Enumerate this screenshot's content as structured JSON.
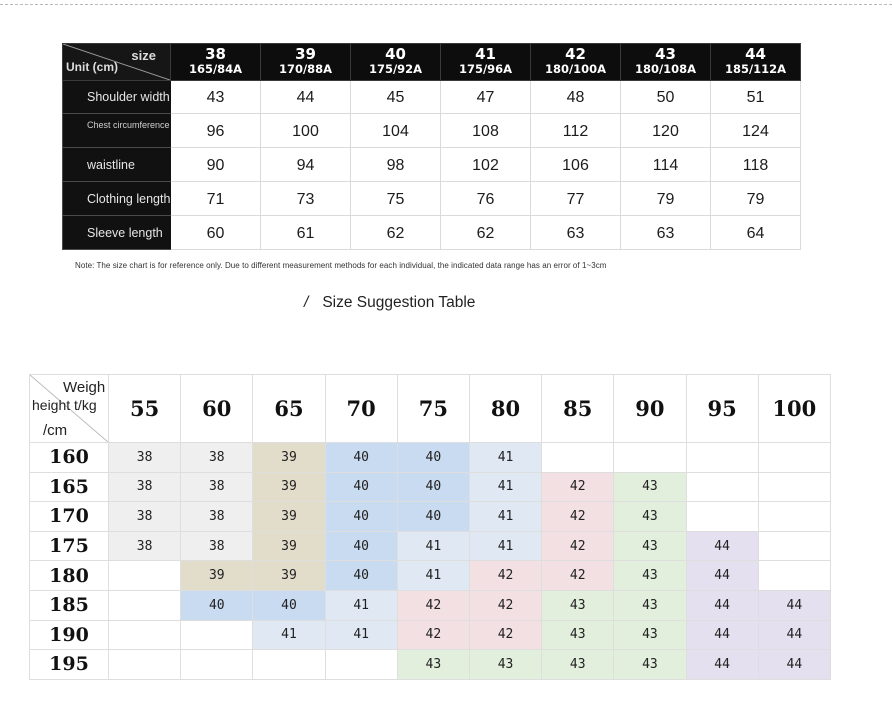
{
  "size_chart": {
    "corner_size": "size",
    "corner_unit": "Unit (cm)",
    "columns": [
      {
        "size": "38",
        "code": "165/84A"
      },
      {
        "size": "39",
        "code": "170/88A"
      },
      {
        "size": "40",
        "code": "175/92A"
      },
      {
        "size": "41",
        "code": "175/96A"
      },
      {
        "size": "42",
        "code": "180/100A"
      },
      {
        "size": "43",
        "code": "180/108A"
      },
      {
        "size": "44",
        "code": "185/112A"
      }
    ],
    "rows": [
      {
        "label": "Shoulder width",
        "values": [
          "43",
          "44",
          "45",
          "47",
          "48",
          "50",
          "51"
        ]
      },
      {
        "label": "Chest circumference",
        "values": [
          "96",
          "100",
          "104",
          "108",
          "112",
          "120",
          "124"
        ]
      },
      {
        "label": "waistline",
        "values": [
          "90",
          "94",
          "98",
          "102",
          "106",
          "114",
          "118"
        ]
      },
      {
        "label": "Clothing length",
        "values": [
          "71",
          "73",
          "75",
          "76",
          "77",
          "79",
          "79"
        ]
      },
      {
        "label": "Sleeve length",
        "values": [
          "60",
          "61",
          "62",
          "62",
          "63",
          "63",
          "64"
        ]
      }
    ]
  },
  "note": "Note: The size chart is for reference only. Due to different measurement methods for each individual, the indicated data range has an error of 1~3cm",
  "subtitle": {
    "slash": "/",
    "text": "Size Suggestion Table"
  },
  "suggestion": {
    "corner_weight": "Weigh",
    "corner_kg": "height t/kg",
    "corner_cm": "/cm",
    "weights": [
      "55",
      "60",
      "65",
      "70",
      "75",
      "80",
      "85",
      "90",
      "95",
      "100"
    ],
    "colors": {
      "38": "#efefef",
      "39": "#e2dccb",
      "40": "#c9dbf0",
      "41": "#e0e8f3",
      "42": "#f3e0e2",
      "43": "#e3efdd",
      "44": "#e4e0ef"
    },
    "rows": [
      {
        "height": "160",
        "cells": [
          "38",
          "38",
          "39",
          "40",
          "40",
          "41",
          "",
          "",
          "",
          ""
        ]
      },
      {
        "height": "165",
        "cells": [
          "38",
          "38",
          "39",
          "40",
          "40",
          "41",
          "42",
          "43",
          "",
          ""
        ]
      },
      {
        "height": "170",
        "cells": [
          "38",
          "38",
          "39",
          "40",
          "40",
          "41",
          "42",
          "43",
          "",
          ""
        ]
      },
      {
        "height": "175",
        "cells": [
          "38",
          "38",
          "39",
          "40",
          "41",
          "41",
          "42",
          "43",
          "44",
          ""
        ]
      },
      {
        "height": "180",
        "cells": [
          "",
          "39",
          "39",
          "40",
          "41",
          "42",
          "42",
          "43",
          "44",
          ""
        ]
      },
      {
        "height": "185",
        "cells": [
          "",
          "40",
          "40",
          "41",
          "42",
          "42",
          "43",
          "43",
          "44",
          "44"
        ]
      },
      {
        "height": "190",
        "cells": [
          "",
          "",
          "41",
          "41",
          "42",
          "42",
          "43",
          "43",
          "44",
          "44"
        ]
      },
      {
        "height": "195",
        "cells": [
          "",
          "",
          "",
          "",
          "43",
          "43",
          "43",
          "43",
          "44",
          "44"
        ]
      }
    ]
  }
}
